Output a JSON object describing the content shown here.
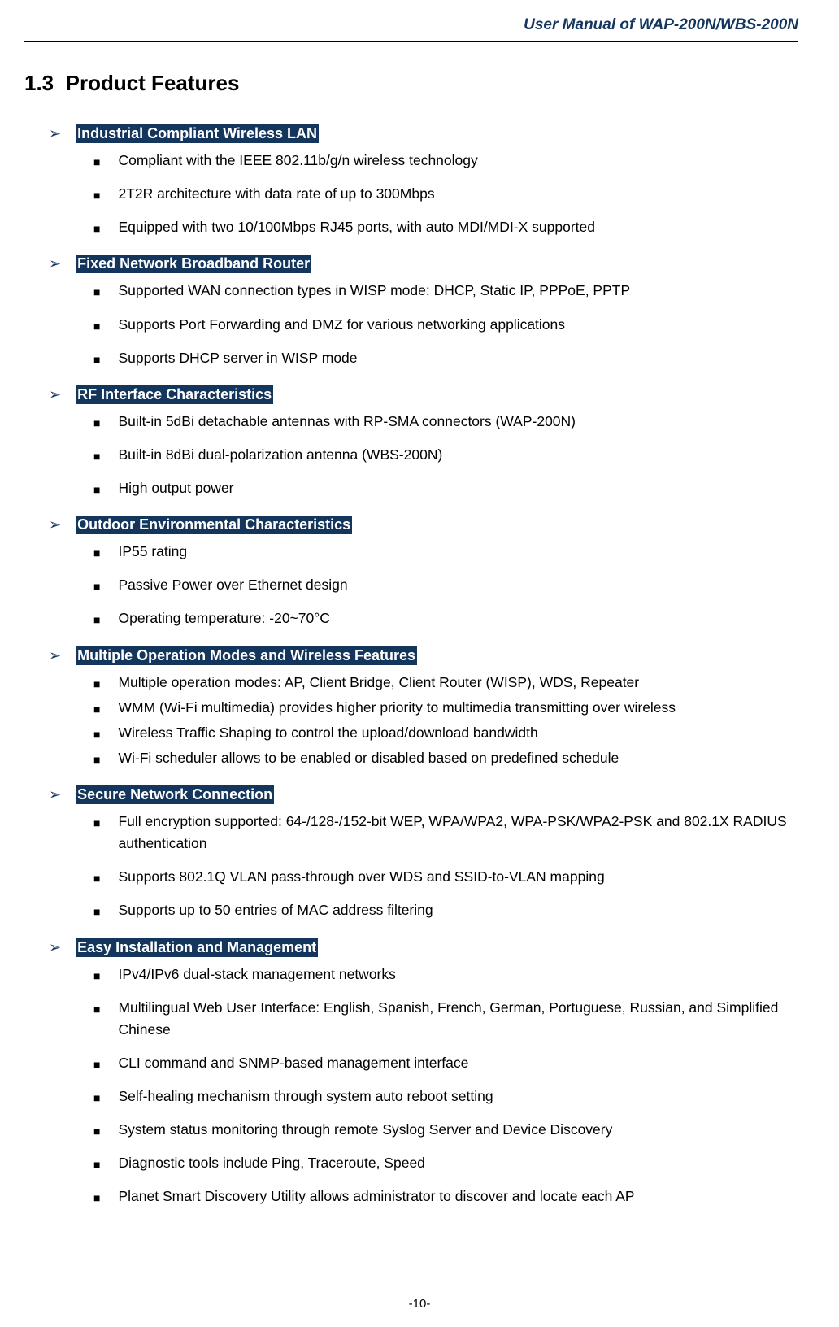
{
  "header": "User Manual of WAP-200N/WBS-200N",
  "section_number": "1.3",
  "section_title": "Product Features",
  "colors": {
    "header_text": "#14365d",
    "feature_title_bg": "#14365d",
    "feature_title_fg": "#ffffff",
    "arrow_bullet": "#14365d",
    "square_bullet": "#000000",
    "body_text": "#000000",
    "background": "#ffffff"
  },
  "typography": {
    "header_fontsize": 19,
    "section_title_fontsize": 26,
    "feature_title_fontsize": 18,
    "item_fontsize": 17.5
  },
  "groups": [
    {
      "title": "Industrial Compliant Wireless LAN",
      "items": [
        "Compliant with the IEEE 802.11b/g/n wireless technology",
        "2T2R architecture with data rate of up to 300Mbps",
        "Equipped with two 10/100Mbps RJ45 ports, with auto MDI/MDI-X supported"
      ],
      "tight": false
    },
    {
      "title": "Fixed Network Broadband Router",
      "items": [
        "Supported WAN connection types in WISP mode: DHCP, Static IP, PPPoE, PPTP",
        "Supports Port Forwarding and DMZ for various networking applications",
        "Supports DHCP server in WISP mode"
      ],
      "tight": false
    },
    {
      "title": "RF Interface Characteristics",
      "items": [
        "Built-in 5dBi detachable antennas with RP-SMA connectors (WAP-200N)",
        "Built-in 8dBi dual-polarization antenna (WBS-200N)",
        "High output power"
      ],
      "tight": false
    },
    {
      "title": "Outdoor Environmental Characteristics",
      "items": [
        "IP55 rating",
        "Passive Power over Ethernet design",
        "Operating temperature: -20~70°C"
      ],
      "tight": false
    },
    {
      "title": "Multiple Operation Modes and Wireless Features",
      "items": [
        "Multiple operation modes: AP, Client Bridge, Client Router (WISP), WDS, Repeater",
        "WMM (Wi-Fi multimedia) provides higher priority to multimedia transmitting over wireless",
        "Wireless Traffic Shaping to control the upload/download bandwidth",
        "Wi-Fi scheduler allows to be enabled or disabled based on predefined schedule"
      ],
      "tight": true
    },
    {
      "title": "Secure Network Connection",
      "items": [
        "Full encryption supported: 64-/128-/152-bit WEP, WPA/WPA2, WPA-PSK/WPA2-PSK and 802.1X RADIUS authentication",
        "Supports 802.1Q VLAN pass-through over WDS and SSID-to-VLAN mapping",
        "Supports up to 50 entries of MAC address filtering"
      ],
      "tight": false
    },
    {
      "title": "Easy Installation and Management",
      "items": [
        "IPv4/IPv6 dual-stack management networks",
        "Multilingual Web User Interface: English, Spanish, French, German, Portuguese, Russian, and Simplified Chinese",
        "CLI command and SNMP-based management interface",
        "Self-healing mechanism through system auto reboot setting",
        "System status monitoring through remote Syslog Server and Device Discovery",
        "Diagnostic tools include Ping, Traceroute, Speed",
        "Planet Smart Discovery Utility allows administrator to discover and locate each AP"
      ],
      "tight": false
    }
  ],
  "page_number": "-10-"
}
